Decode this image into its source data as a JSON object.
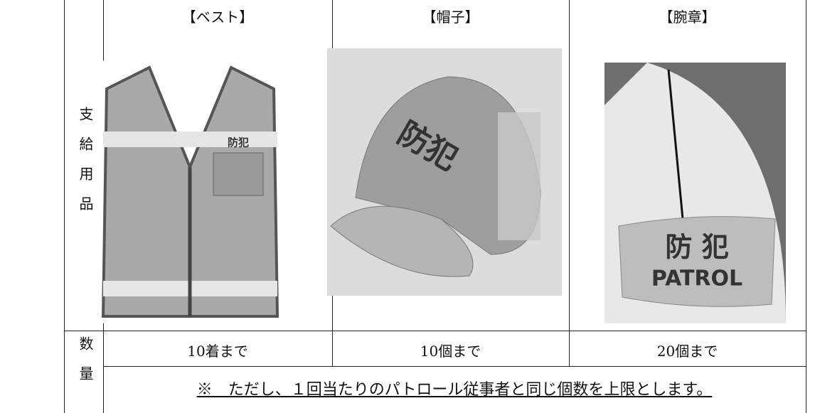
{
  "table": {
    "row_header_supplies": "支給用品",
    "row_header_quantity": "数量",
    "items": [
      {
        "label": "【ベスト】",
        "quantity": "10着まで",
        "image_text": "防犯"
      },
      {
        "label": "【帽子】",
        "quantity": "10個まで",
        "image_text": "防犯"
      },
      {
        "label": "【腕章】",
        "quantity": "20個まで",
        "image_text": "防 犯",
        "image_subtext": "PATROL"
      }
    ],
    "note": "※　ただし、１回当たりのパトロール従事者と同じ個数を上限とします。"
  }
}
